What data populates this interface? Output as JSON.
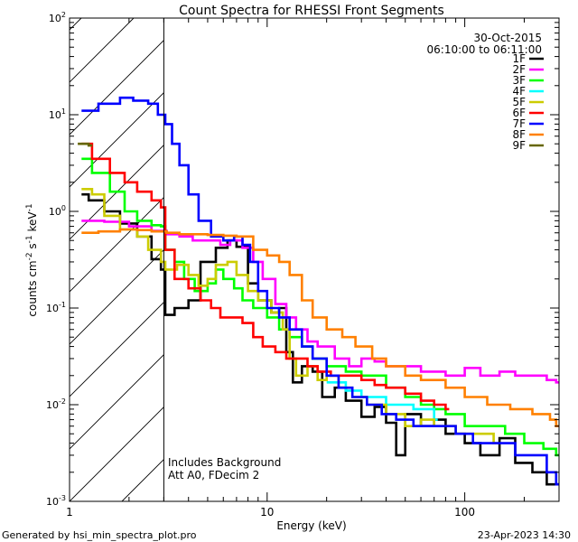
{
  "chart_data": {
    "type": "line",
    "title": "Count Spectra for RHESSI Front Segments",
    "xlabel": "Energy (keV)",
    "ylabel_main": "counts cm",
    "ylabel_sup1": "-2",
    "ylabel_mid": " s",
    "ylabel_sup2": "-1",
    "ylabel_end": " keV",
    "ylabel_sup3": "-1",
    "xscale": "log",
    "yscale": "log",
    "xlim": [
      1.0,
      300.0
    ],
    "ylim": [
      0.001,
      100
    ],
    "x_ticks": [
      {
        "value": 1,
        "label": "1"
      },
      {
        "value": 10,
        "label": "10"
      },
      {
        "value": 100,
        "label": "100"
      }
    ],
    "y_ticks": [
      {
        "value": 0.001,
        "base": "10",
        "exp": "-3"
      },
      {
        "value": 0.01,
        "base": "10",
        "exp": "-2"
      },
      {
        "value": 0.1,
        "base": "10",
        "exp": "-1"
      },
      {
        "value": 1,
        "base": "10",
        "exp": "0"
      },
      {
        "value": 10,
        "base": "10",
        "exp": "1"
      },
      {
        "value": 100,
        "base": "10",
        "exp": "2"
      }
    ],
    "hatched_region": {
      "from": 1.0,
      "to": 3.0
    },
    "date": "30-Oct-2015",
    "time_range": "06:10:00 to 06:11:00",
    "annotation_line1": "Includes Background",
    "annotation_line2": "Att A0, FDecim 2",
    "series": [
      {
        "name": "1F",
        "color": "#000000",
        "points": [
          [
            1.15,
            1.5
          ],
          [
            1.25,
            1.3
          ],
          [
            1.5,
            1.0
          ],
          [
            1.8,
            0.75
          ],
          [
            2.2,
            0.55
          ],
          [
            2.6,
            0.32
          ],
          [
            2.9,
            0.25
          ],
          [
            3.05,
            0.085
          ],
          [
            3.4,
            0.1
          ],
          [
            4.0,
            0.12
          ],
          [
            4.6,
            0.3
          ],
          [
            5.5,
            0.42
          ],
          [
            6.3,
            0.5
          ],
          [
            7.0,
            0.43
          ],
          [
            8.0,
            0.18
          ],
          [
            9.0,
            0.12
          ],
          [
            10.5,
            0.09
          ],
          [
            11.5,
            0.1
          ],
          [
            12.5,
            0.035
          ],
          [
            13.5,
            0.017
          ],
          [
            15,
            0.025
          ],
          [
            17,
            0.022
          ],
          [
            19,
            0.012
          ],
          [
            22,
            0.015
          ],
          [
            25,
            0.011
          ],
          [
            30,
            0.0075
          ],
          [
            35,
            0.0095
          ],
          [
            40,
            0.0065
          ],
          [
            45,
            0.003
          ],
          [
            50,
            0.008
          ],
          [
            60,
            0.006
          ],
          [
            70,
            0.007
          ],
          [
            80,
            0.005
          ],
          [
            100,
            0.004
          ],
          [
            120,
            0.003
          ],
          [
            150,
            0.0045
          ],
          [
            180,
            0.0025
          ],
          [
            220,
            0.002
          ],
          [
            260,
            0.0015
          ],
          [
            290,
            0.0015
          ]
        ]
      },
      {
        "name": "2F",
        "color": "#ff00ff",
        "points": [
          [
            1.15,
            0.8
          ],
          [
            1.5,
            0.78
          ],
          [
            2.0,
            0.7
          ],
          [
            2.6,
            0.63
          ],
          [
            3.1,
            0.58
          ],
          [
            3.6,
            0.55
          ],
          [
            4.2,
            0.5
          ],
          [
            5.0,
            0.5
          ],
          [
            5.8,
            0.45
          ],
          [
            6.5,
            0.5
          ],
          [
            7.5,
            0.42
          ],
          [
            8.5,
            0.3
          ],
          [
            9.5,
            0.2
          ],
          [
            11,
            0.11
          ],
          [
            12.5,
            0.08
          ],
          [
            14,
            0.06
          ],
          [
            16,
            0.045
          ],
          [
            18,
            0.04
          ],
          [
            22,
            0.03
          ],
          [
            26,
            0.025
          ],
          [
            30,
            0.03
          ],
          [
            35,
            0.028
          ],
          [
            40,
            0.025
          ],
          [
            50,
            0.025
          ],
          [
            60,
            0.022
          ],
          [
            70,
            0.022
          ],
          [
            80,
            0.02
          ],
          [
            100,
            0.024
          ],
          [
            120,
            0.02
          ],
          [
            150,
            0.022
          ],
          [
            180,
            0.02
          ],
          [
            220,
            0.02
          ],
          [
            260,
            0.018
          ],
          [
            290,
            0.017
          ]
        ]
      },
      {
        "name": "3F",
        "color": "#00ff00",
        "points": [
          [
            1.15,
            3.5
          ],
          [
            1.3,
            2.5
          ],
          [
            1.6,
            1.6
          ],
          [
            1.9,
            1.0
          ],
          [
            2.2,
            0.8
          ],
          [
            2.6,
            0.72
          ],
          [
            2.9,
            0.7
          ],
          [
            3.05,
            0.4
          ],
          [
            3.4,
            0.3
          ],
          [
            3.8,
            0.2
          ],
          [
            4.3,
            0.15
          ],
          [
            5.0,
            0.18
          ],
          [
            5.5,
            0.25
          ],
          [
            6.0,
            0.2
          ],
          [
            6.8,
            0.16
          ],
          [
            7.5,
            0.12
          ],
          [
            8.5,
            0.1
          ],
          [
            10,
            0.08
          ],
          [
            11.5,
            0.06
          ],
          [
            13,
            0.05
          ],
          [
            15,
            0.04
          ],
          [
            17,
            0.03
          ],
          [
            20,
            0.025
          ],
          [
            25,
            0.022
          ],
          [
            30,
            0.02
          ],
          [
            40,
            0.015
          ],
          [
            50,
            0.012
          ],
          [
            60,
            0.01
          ],
          [
            70,
            0.009
          ],
          [
            80,
            0.008
          ],
          [
            100,
            0.006
          ],
          [
            130,
            0.006
          ],
          [
            160,
            0.005
          ],
          [
            200,
            0.004
          ],
          [
            250,
            0.0035
          ],
          [
            290,
            0.003
          ]
        ]
      },
      {
        "name": "4F",
        "color": "#00ffff",
        "points": [
          [
            20,
            0.017
          ],
          [
            25,
            0.014
          ],
          [
            30,
            0.012
          ],
          [
            40,
            0.01
          ],
          [
            55,
            0.009
          ],
          [
            70,
            0.007
          ]
        ]
      },
      {
        "name": "5F",
        "color": "#cccc00",
        "points": [
          [
            1.15,
            1.7
          ],
          [
            1.3,
            1.5
          ],
          [
            1.5,
            0.9
          ],
          [
            1.8,
            0.65
          ],
          [
            2.2,
            0.55
          ],
          [
            2.5,
            0.4
          ],
          [
            2.9,
            0.3
          ],
          [
            3.05,
            0.25
          ],
          [
            3.5,
            0.28
          ],
          [
            4.0,
            0.22
          ],
          [
            4.5,
            0.17
          ],
          [
            5.0,
            0.2
          ],
          [
            5.5,
            0.28
          ],
          [
            6.3,
            0.3
          ],
          [
            7.0,
            0.22
          ],
          [
            8.0,
            0.15
          ],
          [
            9.0,
            0.12
          ],
          [
            10.5,
            0.09
          ],
          [
            12,
            0.06
          ],
          [
            13,
            0.03
          ],
          [
            14,
            0.02
          ],
          [
            16,
            0.025
          ],
          [
            18,
            0.018
          ],
          [
            20,
            0.02
          ],
          [
            23,
            0.015
          ],
          [
            27,
            0.012
          ],
          [
            32,
            0.01
          ],
          [
            40,
            0.008
          ],
          [
            50,
            0.006
          ],
          [
            60,
            0.007
          ],
          [
            70,
            0.006
          ],
          [
            90,
            0.005
          ],
          [
            110,
            0.005
          ],
          [
            140,
            0.004
          ]
        ]
      },
      {
        "name": "6F",
        "color": "#ff0000",
        "points": [
          [
            1.15,
            5.0
          ],
          [
            1.3,
            3.5
          ],
          [
            1.6,
            2.5
          ],
          [
            1.9,
            2.0
          ],
          [
            2.2,
            1.6
          ],
          [
            2.6,
            1.3
          ],
          [
            2.9,
            1.1
          ],
          [
            3.05,
            0.4
          ],
          [
            3.4,
            0.2
          ],
          [
            4.0,
            0.16
          ],
          [
            4.6,
            0.12
          ],
          [
            5.2,
            0.1
          ],
          [
            5.8,
            0.08
          ],
          [
            6.5,
            0.08
          ],
          [
            7.5,
            0.07
          ],
          [
            8.5,
            0.05
          ],
          [
            9.5,
            0.04
          ],
          [
            11,
            0.035
          ],
          [
            12.5,
            0.03
          ],
          [
            14,
            0.03
          ],
          [
            16,
            0.025
          ],
          [
            18,
            0.022
          ],
          [
            21,
            0.02
          ],
          [
            25,
            0.02
          ],
          [
            30,
            0.018
          ],
          [
            35,
            0.016
          ],
          [
            40,
            0.015
          ],
          [
            50,
            0.013
          ],
          [
            60,
            0.011
          ],
          [
            70,
            0.01
          ],
          [
            80,
            0.009
          ]
        ]
      },
      {
        "name": "7F",
        "color": "#0000ff",
        "points": [
          [
            1.15,
            11
          ],
          [
            1.4,
            13
          ],
          [
            1.8,
            15
          ],
          [
            2.1,
            14
          ],
          [
            2.5,
            13
          ],
          [
            2.8,
            10
          ],
          [
            3.05,
            8
          ],
          [
            3.3,
            5
          ],
          [
            3.6,
            3
          ],
          [
            4.0,
            1.5
          ],
          [
            4.5,
            0.8
          ],
          [
            5.2,
            0.55
          ],
          [
            6.0,
            0.5
          ],
          [
            6.8,
            0.55
          ],
          [
            7.5,
            0.45
          ],
          [
            8.2,
            0.3
          ],
          [
            9.0,
            0.15
          ],
          [
            10,
            0.1
          ],
          [
            11.5,
            0.08
          ],
          [
            13,
            0.06
          ],
          [
            15,
            0.04
          ],
          [
            17,
            0.03
          ],
          [
            20,
            0.02
          ],
          [
            23,
            0.015
          ],
          [
            27,
            0.012
          ],
          [
            32,
            0.01
          ],
          [
            38,
            0.008
          ],
          [
            45,
            0.007
          ],
          [
            55,
            0.006
          ],
          [
            70,
            0.006
          ],
          [
            90,
            0.005
          ],
          [
            110,
            0.004
          ],
          [
            140,
            0.004
          ],
          [
            180,
            0.003
          ],
          [
            220,
            0.003
          ],
          [
            260,
            0.002
          ],
          [
            290,
            0.0015
          ]
        ]
      },
      {
        "name": "8F",
        "color": "#ff8000",
        "points": [
          [
            1.15,
            0.6
          ],
          [
            1.4,
            0.62
          ],
          [
            1.8,
            0.65
          ],
          [
            2.2,
            0.64
          ],
          [
            2.6,
            0.62
          ],
          [
            3.1,
            0.6
          ],
          [
            3.6,
            0.58
          ],
          [
            4.2,
            0.58
          ],
          [
            5.0,
            0.57
          ],
          [
            6.0,
            0.56
          ],
          [
            7.0,
            0.55
          ],
          [
            8.5,
            0.4
          ],
          [
            10,
            0.35
          ],
          [
            11.5,
            0.3
          ],
          [
            13,
            0.22
          ],
          [
            15,
            0.12
          ],
          [
            17,
            0.08
          ],
          [
            20,
            0.06
          ],
          [
            24,
            0.05
          ],
          [
            28,
            0.04
          ],
          [
            34,
            0.03
          ],
          [
            40,
            0.025
          ],
          [
            50,
            0.02
          ],
          [
            60,
            0.018
          ],
          [
            80,
            0.015
          ],
          [
            100,
            0.012
          ],
          [
            130,
            0.01
          ],
          [
            170,
            0.009
          ],
          [
            220,
            0.008
          ],
          [
            270,
            0.007
          ],
          [
            290,
            0.006
          ]
        ]
      },
      {
        "name": "9F",
        "color": "#666600",
        "points": [
          [
            1.1,
            5.0
          ],
          [
            1.2,
            5.0
          ],
          [
            1.25,
            4.8
          ]
        ]
      }
    ]
  },
  "footer": {
    "left": "Generated by hsi_min_spectra_plot.pro",
    "right": "23-Apr-2023 14:30"
  }
}
